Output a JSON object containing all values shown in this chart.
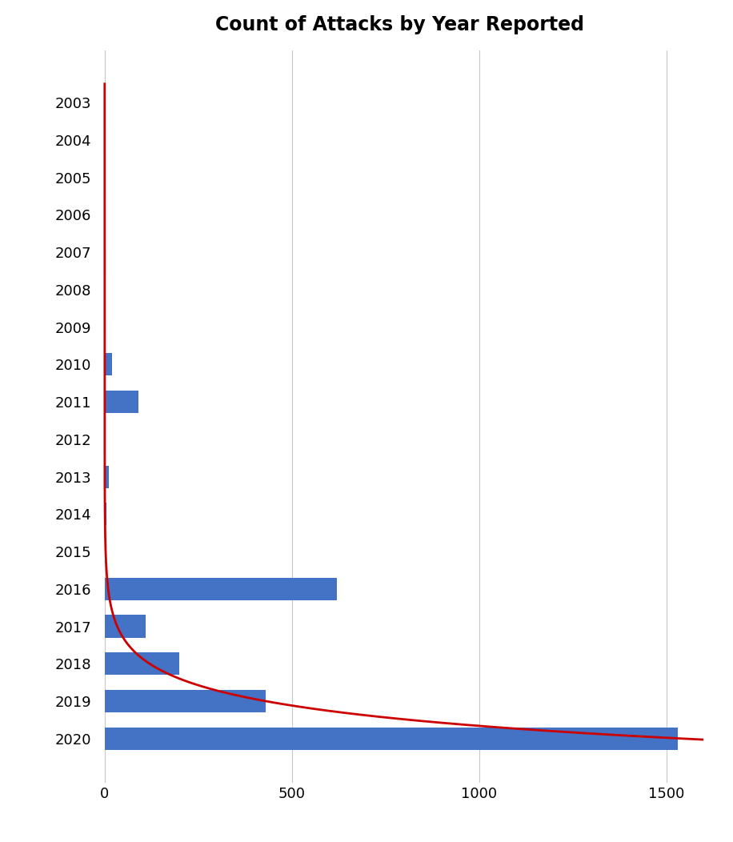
{
  "title": "Count of Attacks by Year Reported",
  "title_fontsize": 17,
  "title_fontweight": "bold",
  "years": [
    2003,
    2004,
    2005,
    2006,
    2007,
    2008,
    2009,
    2010,
    2011,
    2012,
    2013,
    2014,
    2015,
    2016,
    2017,
    2018,
    2019,
    2020
  ],
  "counts": [
    1,
    0,
    0,
    0,
    0,
    0,
    0,
    20,
    90,
    3,
    12,
    5,
    5,
    620,
    110,
    200,
    430,
    1530
  ],
  "bar_color": "#4472C4",
  "line_color": "#CC0000",
  "xlim": [
    -25,
    1600
  ],
  "xticks": [
    0,
    500,
    1000,
    1500
  ],
  "background_color": "#ffffff",
  "grid_color": "#c8c8c8",
  "tick_fontsize": 13,
  "curve_A": 3000.0,
  "curve_k": 0.42,
  "figure_width": 9.16,
  "figure_height": 10.52
}
